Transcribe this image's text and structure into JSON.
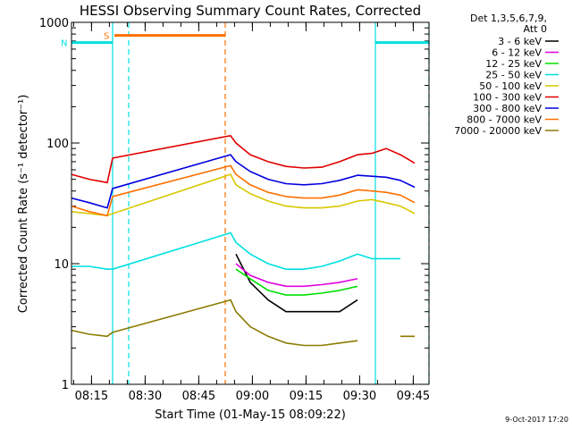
{
  "chart_data": {
    "type": "line",
    "title": "HESSI Observing Summary Count Rates, Corrected",
    "xlabel": "Start Time (01-May-15 08:09:22)",
    "ylabel": "Corrected Count Rate (s⁻¹ detector⁻¹)",
    "y_scale": "log",
    "ylim": [
      1,
      1000
    ],
    "xlim_minutes": [
      0,
      100
    ],
    "x_ticks": [
      {
        "label": "08:15",
        "minute": 5.6
      },
      {
        "label": "08:30",
        "minute": 20.6
      },
      {
        "label": "08:45",
        "minute": 35.6
      },
      {
        "label": "09:00",
        "minute": 50.6
      },
      {
        "label": "09:15",
        "minute": 65.6
      },
      {
        "label": "09:30",
        "minute": 80.6
      },
      {
        "label": "09:45",
        "minute": 95.6
      }
    ],
    "y_ticks": [
      {
        "label": "1",
        "value": 1
      },
      {
        "label": "10",
        "value": 10
      },
      {
        "label": "100",
        "value": 100
      },
      {
        "label": "1000",
        "value": 1000
      }
    ],
    "legend_header": [
      "Det 1,3,5,6,7,9,",
      "Att 0"
    ],
    "legend_placement": "right",
    "x_minutes": [
      0,
      5,
      10,
      11.5,
      44.5,
      46,
      50,
      55,
      60,
      65,
      70,
      75,
      80,
      84,
      88,
      92,
      96
    ],
    "series": [
      {
        "name": "3 - 6 keV",
        "color": "#000000",
        "values": [
          null,
          null,
          null,
          null,
          null,
          12,
          7,
          5,
          4,
          4,
          4,
          4,
          5,
          null,
          null,
          null,
          null
        ]
      },
      {
        "name": "6 - 12 keV",
        "color": "#e000e0",
        "values": [
          null,
          null,
          null,
          null,
          null,
          10,
          8,
          7,
          6.5,
          6.5,
          6.7,
          7,
          7.5,
          null,
          null,
          null,
          null
        ]
      },
      {
        "name": "12 - 25 keV",
        "color": "#00e000",
        "values": [
          null,
          null,
          null,
          null,
          null,
          9,
          7.5,
          6,
          5.5,
          5.5,
          5.7,
          6,
          6.5,
          null,
          null,
          null,
          null
        ]
      },
      {
        "name": "25 - 50 keV",
        "color": "#00e0e0",
        "values": [
          9.5,
          9.5,
          9,
          9,
          18,
          15,
          12,
          10,
          9,
          9,
          9.5,
          10.5,
          12,
          11,
          11,
          11,
          null
        ]
      },
      {
        "name": "50 - 100 keV",
        "color": "#d8c800",
        "values": [
          27,
          26,
          25,
          26,
          55,
          45,
          38,
          33,
          30,
          29,
          29,
          30,
          33,
          34,
          32,
          30,
          26
        ]
      },
      {
        "name": "100 - 300 keV",
        "color": "#e00000",
        "values": [
          55,
          50,
          47,
          75,
          115,
          100,
          80,
          70,
          64,
          62,
          63,
          70,
          80,
          82,
          90,
          80,
          68
        ]
      },
      {
        "name": "300 - 800 keV",
        "color": "#0000e0",
        "values": [
          35,
          32,
          29,
          42,
          80,
          70,
          58,
          50,
          46,
          45,
          46,
          49,
          54,
          53,
          52,
          49,
          43
        ]
      },
      {
        "name": "800 - 7000 keV",
        "color": "#ff7000",
        "values": [
          30,
          27,
          25,
          36,
          65,
          55,
          45,
          39,
          36,
          35,
          35,
          37,
          41,
          40,
          39,
          37,
          32
        ]
      },
      {
        "name": "7000 - 20000 keV",
        "color": "#8c7a00",
        "values": [
          2.8,
          2.6,
          2.5,
          2.7,
          5,
          4,
          3,
          2.5,
          2.2,
          2.1,
          2.1,
          2.2,
          2.3,
          null,
          null,
          2.5,
          2.5
        ]
      }
    ],
    "annotations": [
      {
        "label": "S",
        "color": "#ff7000",
        "start_minute": 12,
        "end_minute": 43,
        "value": 780
      },
      {
        "label": "N",
        "color": "#00e0e0",
        "start_minute": 0,
        "end_minute": 11.5,
        "value": 680
      },
      {
        "label": "",
        "color": "#00e0e0",
        "start_minute": 85,
        "end_minute": 100,
        "value": 680
      }
    ],
    "vertical_markers": [
      {
        "minute": 11.5,
        "color": "#00e0e0",
        "style": "solid"
      },
      {
        "minute": 16,
        "color": "#00e0e0",
        "style": "dashed"
      },
      {
        "minute": 43,
        "color": "#ff7000",
        "style": "dashed"
      },
      {
        "minute": 85,
        "color": "#00e0e0",
        "style": "solid"
      },
      {
        "minute": 100,
        "color": "#00e0e0",
        "style": "dashed"
      }
    ],
    "grid": false
  },
  "footer_stamp": "9-Oct-2017 17:20"
}
